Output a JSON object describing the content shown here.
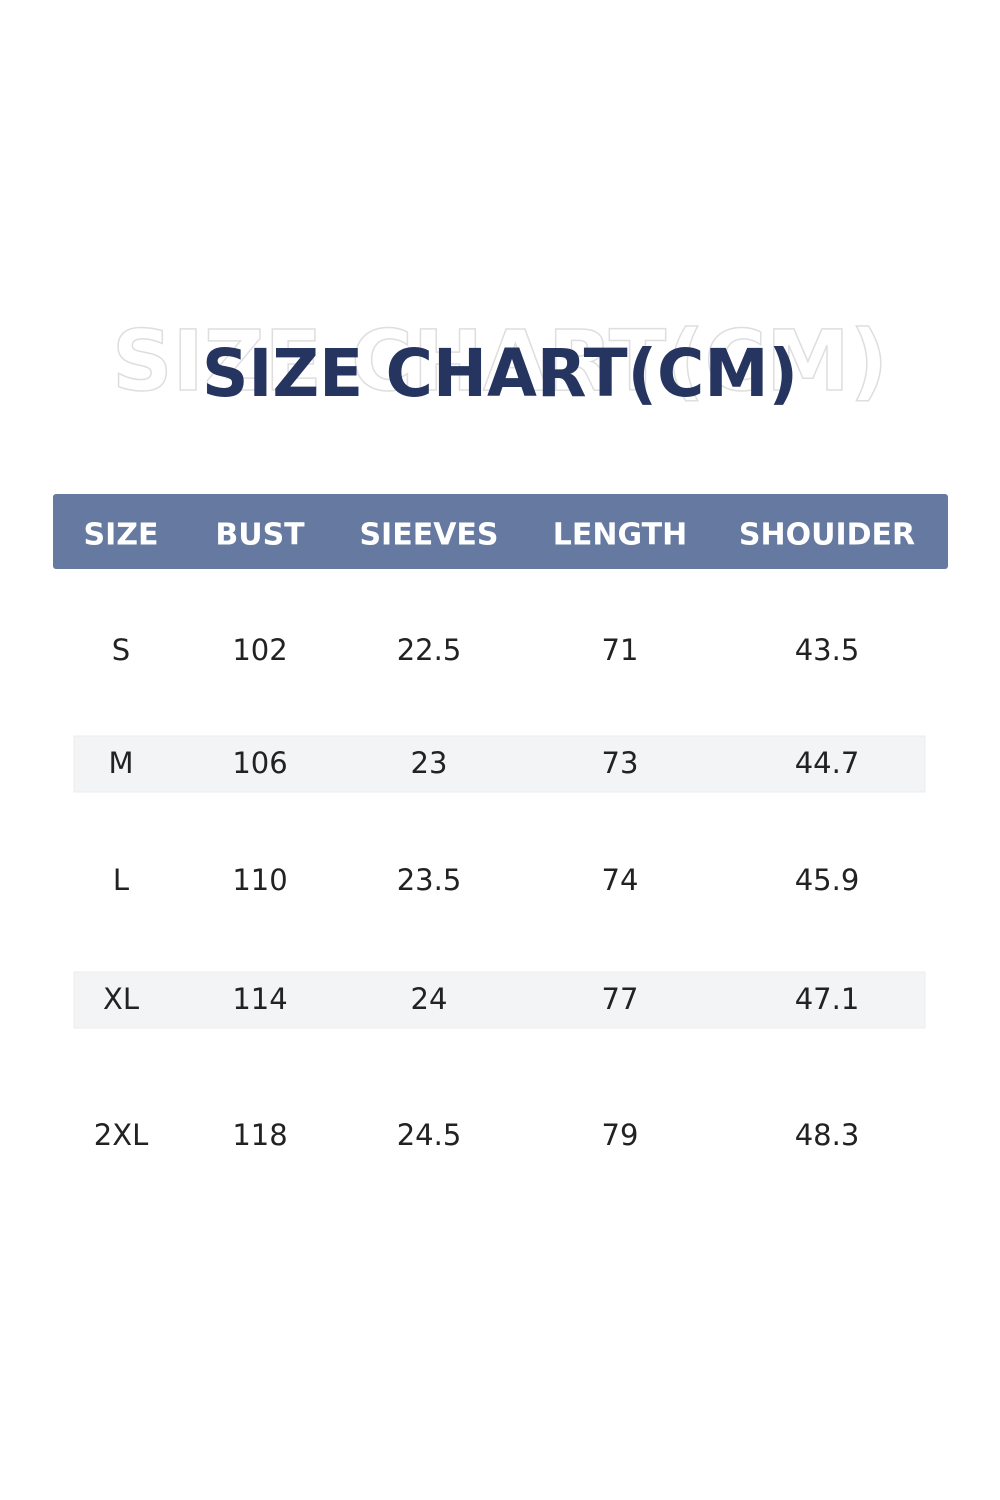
{
  "title": "SIZE CHART(CM)",
  "table": {
    "header": [
      "SIZE",
      "BUST",
      "SIEEVES",
      "LENGTH",
      "SHOUIDER"
    ],
    "rows": [
      [
        "S",
        102,
        22.5,
        71,
        43.5
      ],
      [
        "M",
        106,
        23,
        73,
        44.7
      ],
      [
        "L",
        110,
        23.5,
        74,
        45.9
      ],
      [
        "XL",
        114,
        24,
        77,
        47.1
      ],
      [
        "2XL",
        118,
        24.5,
        79,
        48.3
      ]
    ]
  }
}
